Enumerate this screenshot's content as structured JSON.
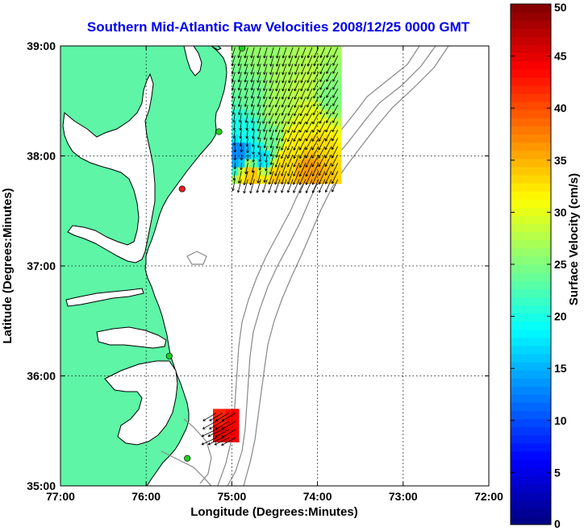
{
  "title": "Southern Mid-Atlantic Raw Velocities 2008/12/25 0000 GMT",
  "map": {
    "xlabel": "Longitude (Degrees:Minutes)",
    "ylabel": "Latitude (Degrees:Minutes)",
    "lon_range": [
      -77,
      -72
    ],
    "lat_range": [
      35,
      39
    ],
    "x_ticks": [
      {
        "value": -77,
        "label": "77:00"
      },
      {
        "value": -76,
        "label": "76:00"
      },
      {
        "value": -75,
        "label": "75:00"
      },
      {
        "value": -74,
        "label": "74:00"
      },
      {
        "value": -73,
        "label": "73:00"
      },
      {
        "value": -72,
        "label": "72:00"
      }
    ],
    "y_ticks": [
      {
        "value": 35,
        "label": "35:00"
      },
      {
        "value": 36,
        "label": "36:00"
      },
      {
        "value": 37,
        "label": "37:00"
      },
      {
        "value": 38,
        "label": "38:00"
      },
      {
        "value": 39,
        "label": "39:00"
      }
    ],
    "grid": "dotted",
    "land_color": "#5ef5a6",
    "stations": [
      {
        "name": "station-north",
        "lon": -74.88,
        "lat": 38.98,
        "color": "#22cc22"
      },
      {
        "name": "station-delmarva-north",
        "lon": -75.15,
        "lat": 38.22,
        "color": "#22cc22"
      },
      {
        "name": "station-delmarva-south",
        "lon": -75.58,
        "lat": 37.7,
        "color": "#dd2222"
      },
      {
        "name": "station-outer-banks-north",
        "lon": -75.73,
        "lat": 36.18,
        "color": "#22cc22"
      },
      {
        "name": "station-hatteras",
        "lon": -75.52,
        "lat": 35.25,
        "color": "#22cc22"
      }
    ]
  },
  "colorbar": {
    "label": "Surface Velocity (cm/s)",
    "min": 0,
    "max": 50,
    "ticks": [
      0,
      5,
      10,
      15,
      20,
      25,
      30,
      35,
      40,
      45,
      50
    ],
    "colormap": "jet"
  },
  "chart_data": {
    "type": "heatmap",
    "description_units": "cm/s",
    "title": "Southern Mid-Atlantic Raw Velocities 2008/12/25 0000 GMT",
    "xlabel": "Longitude (Degrees:Minutes)",
    "ylabel": "Latitude (Degrees:Minutes)",
    "xlim": [
      -77,
      -72
    ],
    "ylim": [
      35,
      39
    ],
    "vlim": [
      0,
      50
    ],
    "grid_step_deg": 0.075,
    "vector_scale_deg_per_cms": 0.004,
    "fields": [
      {
        "name": "new-jersey-delmarva-field",
        "lon_range": [
          -75.0,
          -73.75
        ],
        "lat_range": [
          37.75,
          39.0
        ]
      },
      {
        "name": "cape-hatteras-field",
        "lon_range": [
          -75.22,
          -74.92
        ],
        "lat_range": [
          35.4,
          35.65
        ]
      }
    ],
    "velocity_samples": [
      {
        "lon": -74.6,
        "lat": 38.9,
        "speed": 26,
        "dir_deg": 200
      },
      {
        "lon": -74.4,
        "lat": 38.75,
        "speed": 27,
        "dir_deg": 205
      },
      {
        "lon": -74.2,
        "lat": 38.6,
        "speed": 28,
        "dir_deg": 210
      },
      {
        "lon": -73.9,
        "lat": 38.5,
        "speed": 25,
        "dir_deg": 215
      },
      {
        "lon": -74.8,
        "lat": 38.5,
        "speed": 24,
        "dir_deg": 200
      },
      {
        "lon": -74.5,
        "lat": 38.4,
        "speed": 27,
        "dir_deg": 210
      },
      {
        "lon": -74.1,
        "lat": 38.3,
        "speed": 30,
        "dir_deg": 215
      },
      {
        "lon": -74.9,
        "lat": 38.2,
        "speed": 20,
        "dir_deg": 190
      },
      {
        "lon": -74.6,
        "lat": 38.1,
        "speed": 24,
        "dir_deg": 200
      },
      {
        "lon": -74.3,
        "lat": 38.05,
        "speed": 32,
        "dir_deg": 210
      },
      {
        "lon": -74.05,
        "lat": 38.1,
        "speed": 33,
        "dir_deg": 215
      },
      {
        "lon": -74.95,
        "lat": 38.0,
        "speed": 13,
        "dir_deg": 180
      },
      {
        "lon": -74.7,
        "lat": 37.95,
        "speed": 17,
        "dir_deg": 190
      },
      {
        "lon": -74.4,
        "lat": 37.9,
        "speed": 33,
        "dir_deg": 205
      },
      {
        "lon": -74.15,
        "lat": 37.85,
        "speed": 36,
        "dir_deg": 210
      },
      {
        "lon": -74.8,
        "lat": 37.8,
        "speed": 34,
        "dir_deg": 200
      },
      {
        "lon": -74.5,
        "lat": 37.75,
        "speed": 34,
        "dir_deg": 205
      },
      {
        "lon": -75.15,
        "lat": 35.6,
        "speed": 42,
        "dir_deg": 245
      },
      {
        "lon": -75.05,
        "lat": 35.55,
        "speed": 44,
        "dir_deg": 245
      },
      {
        "lon": -75.15,
        "lat": 35.45,
        "speed": 45,
        "dir_deg": 250
      }
    ]
  }
}
